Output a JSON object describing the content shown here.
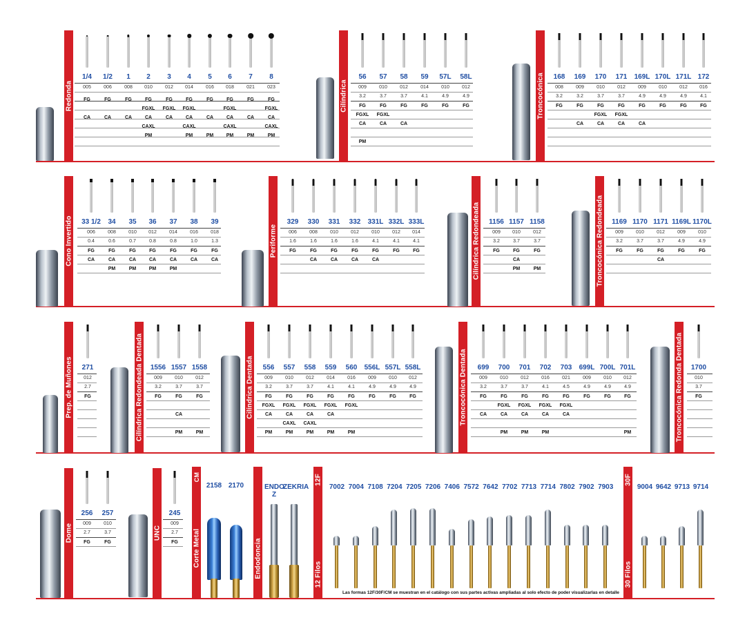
{
  "sections": [
    {
      "id": "redonda",
      "label": "Redonda",
      "columns": [
        {
          "n": "1/4",
          "a": "005",
          "b": "",
          "r": [
            "FG",
            "",
            "CA",
            "",
            ""
          ]
        },
        {
          "n": "1/2",
          "a": "006",
          "b": "",
          "r": [
            "FG",
            "",
            "CA",
            "",
            ""
          ]
        },
        {
          "n": "1",
          "a": "008",
          "b": "",
          "r": [
            "FG",
            "",
            "CA",
            "",
            ""
          ]
        },
        {
          "n": "2",
          "a": "010",
          "b": "",
          "r": [
            "FG",
            "FGXL",
            "CA",
            "CAXL",
            "PM"
          ]
        },
        {
          "n": "3",
          "a": "012",
          "b": "",
          "r": [
            "FG",
            "FGXL",
            "CA",
            "",
            ""
          ]
        },
        {
          "n": "4",
          "a": "014",
          "b": "",
          "r": [
            "FG",
            "FGXL",
            "CA",
            "CAXL",
            "PM"
          ]
        },
        {
          "n": "5",
          "a": "016",
          "b": "",
          "r": [
            "FG",
            "",
            "CA",
            "",
            "PM"
          ]
        },
        {
          "n": "6",
          "a": "018",
          "b": "",
          "r": [
            "FG",
            "FGXL",
            "CA",
            "CAXL",
            "PM"
          ]
        },
        {
          "n": "7",
          "a": "021",
          "b": "",
          "r": [
            "FG",
            "",
            "CA",
            "",
            "PM"
          ]
        },
        {
          "n": "8",
          "a": "023",
          "b": "",
          "r": [
            "FG",
            "FGXL",
            "CA",
            "CAXL",
            "PM"
          ]
        }
      ]
    },
    {
      "id": "cilindrica",
      "label": "Cilíndrica",
      "columns": [
        {
          "n": "56",
          "a": "009",
          "b": "3.2",
          "r": [
            "FG",
            "FGXL",
            "CA",
            "",
            "PM"
          ]
        },
        {
          "n": "57",
          "a": "010",
          "b": "3.7",
          "r": [
            "FG",
            "FGXL",
            "CA",
            "",
            ""
          ]
        },
        {
          "n": "58",
          "a": "012",
          "b": "3.7",
          "r": [
            "FG",
            "",
            "CA",
            "",
            ""
          ]
        },
        {
          "n": "59",
          "a": "014",
          "b": "4.1",
          "r": [
            "FG",
            "",
            "",
            "",
            ""
          ]
        },
        {
          "n": "57L",
          "a": "010",
          "b": "4.9",
          "r": [
            "FG",
            "",
            "",
            "",
            ""
          ]
        },
        {
          "n": "58L",
          "a": "012",
          "b": "4.9",
          "r": [
            "FG",
            "",
            "",
            "",
            ""
          ]
        }
      ]
    },
    {
      "id": "troncoconica",
      "label": "Troncocónica",
      "columns": [
        {
          "n": "168",
          "a": "008",
          "b": "3.2",
          "r": [
            "FG",
            "",
            "",
            "",
            ""
          ]
        },
        {
          "n": "169",
          "a": "009",
          "b": "3.2",
          "r": [
            "FG",
            "",
            "CA",
            "",
            ""
          ]
        },
        {
          "n": "170",
          "a": "010",
          "b": "3.7",
          "r": [
            "FG",
            "FGXL",
            "CA",
            "",
            ""
          ]
        },
        {
          "n": "171",
          "a": "012",
          "b": "3.7",
          "r": [
            "FG",
            "FGXL",
            "CA",
            "",
            ""
          ]
        },
        {
          "n": "169L",
          "a": "009",
          "b": "4.9",
          "r": [
            "FG",
            "",
            "CA",
            "",
            ""
          ]
        },
        {
          "n": "170L",
          "a": "010",
          "b": "4.9",
          "r": [
            "FG",
            "",
            "",
            "",
            ""
          ]
        },
        {
          "n": "171L",
          "a": "012",
          "b": "4.9",
          "r": [
            "FG",
            "",
            "",
            "",
            ""
          ]
        },
        {
          "n": "172",
          "a": "016",
          "b": "4.1",
          "r": [
            "FG",
            "",
            "",
            "",
            ""
          ]
        }
      ]
    },
    {
      "id": "cono",
      "label": "Cono Invertido",
      "columns": [
        {
          "n": "33 1/2",
          "a": "006",
          "b": "0.4",
          "r": [
            "FG",
            "CA",
            ""
          ]
        },
        {
          "n": "34",
          "a": "008",
          "b": "0.6",
          "r": [
            "FG",
            "CA",
            "PM"
          ]
        },
        {
          "n": "35",
          "a": "010",
          "b": "0.7",
          "r": [
            "FG",
            "CA",
            "PM"
          ]
        },
        {
          "n": "36",
          "a": "012",
          "b": "0.8",
          "r": [
            "FG",
            "CA",
            "PM"
          ]
        },
        {
          "n": "37",
          "a": "014",
          "b": "0.8",
          "r": [
            "FG",
            "CA",
            "PM"
          ]
        },
        {
          "n": "38",
          "a": "016",
          "b": "1.0",
          "r": [
            "FG",
            "CA",
            ""
          ]
        },
        {
          "n": "39",
          "a": "018",
          "b": "1.3",
          "r": [
            "FG",
            "CA",
            ""
          ]
        }
      ]
    },
    {
      "id": "periforme",
      "label": "Periforme",
      "columns": [
        {
          "n": "329",
          "a": "006",
          "b": "1.6",
          "r": [
            "FG",
            "",
            ""
          ]
        },
        {
          "n": "330",
          "a": "008",
          "b": "1.6",
          "r": [
            "FG",
            "CA",
            ""
          ]
        },
        {
          "n": "331",
          "a": "010",
          "b": "1.6",
          "r": [
            "FG",
            "CA",
            ""
          ]
        },
        {
          "n": "332",
          "a": "012",
          "b": "1.6",
          "r": [
            "FG",
            "CA",
            ""
          ]
        },
        {
          "n": "331L",
          "a": "010",
          "b": "4.1",
          "r": [
            "FG",
            "CA",
            ""
          ]
        },
        {
          "n": "332L",
          "a": "012",
          "b": "4.1",
          "r": [
            "FG",
            "",
            ""
          ]
        },
        {
          "n": "333L",
          "a": "014",
          "b": "4.1",
          "r": [
            "FG",
            "",
            ""
          ]
        }
      ]
    },
    {
      "id": "cilred",
      "label": "Cilíndrica Redondeada",
      "columns": [
        {
          "n": "1156",
          "a": "009",
          "b": "3.2",
          "r": [
            "FG",
            "",
            ""
          ]
        },
        {
          "n": "1157",
          "a": "010",
          "b": "3.7",
          "r": [
            "FG",
            "CA",
            "PM"
          ]
        },
        {
          "n": "1158",
          "a": "012",
          "b": "3.7",
          "r": [
            "FG",
            "",
            "PM"
          ]
        }
      ]
    },
    {
      "id": "tronred",
      "label": "Troncocónica Redondeada",
      "columns": [
        {
          "n": "1169",
          "a": "009",
          "b": "3.2",
          "r": [
            "FG",
            "",
            ""
          ]
        },
        {
          "n": "1170",
          "a": "010",
          "b": "3.7",
          "r": [
            "FG",
            "",
            ""
          ]
        },
        {
          "n": "1171",
          "a": "012",
          "b": "3.7",
          "r": [
            "FG",
            "CA",
            ""
          ]
        },
        {
          "n": "1169L",
          "a": "009",
          "b": "4.9",
          "r": [
            "FG",
            "",
            ""
          ]
        },
        {
          "n": "1170L",
          "a": "010",
          "b": "4.9",
          "r": [
            "FG",
            "",
            ""
          ]
        }
      ]
    },
    {
      "id": "prep",
      "label": "Prep. de Muñones",
      "columns": [
        {
          "n": "271",
          "a": "012",
          "b": "2.7",
          "r": [
            "FG",
            "",
            "",
            "",
            ""
          ]
        }
      ]
    },
    {
      "id": "cilreddent",
      "label": "Cilíndrica Redondeada Dentada",
      "columns": [
        {
          "n": "1556",
          "a": "009",
          "b": "3.2",
          "r": [
            "FG",
            "",
            "",
            "",
            ""
          ]
        },
        {
          "n": "1557",
          "a": "010",
          "b": "3.7",
          "r": [
            "FG",
            "",
            "CA",
            "",
            "PM"
          ]
        },
        {
          "n": "1558",
          "a": "012",
          "b": "3.7",
          "r": [
            "FG",
            "",
            "",
            "",
            "PM"
          ]
        }
      ]
    },
    {
      "id": "cildent",
      "label": "Cilíndrica Dentada",
      "columns": [
        {
          "n": "556",
          "a": "009",
          "b": "3.2",
          "r": [
            "FG",
            "FGXL",
            "CA",
            "",
            "PM"
          ]
        },
        {
          "n": "557",
          "a": "010",
          "b": "3.7",
          "r": [
            "FG",
            "FGXL",
            "CA",
            "CAXL",
            "PM"
          ]
        },
        {
          "n": "558",
          "a": "012",
          "b": "3.7",
          "r": [
            "FG",
            "FGXL",
            "CA",
            "CAXL",
            "PM"
          ]
        },
        {
          "n": "559",
          "a": "014",
          "b": "4.1",
          "r": [
            "FG",
            "FGXL",
            "CA",
            "",
            "PM"
          ]
        },
        {
          "n": "560",
          "a": "016",
          "b": "4.1",
          "r": [
            "FG",
            "FGXL",
            "",
            "",
            "PM"
          ]
        },
        {
          "n": "556L",
          "a": "009",
          "b": "4.9",
          "r": [
            "FG",
            "",
            "",
            "",
            ""
          ]
        },
        {
          "n": "557L",
          "a": "010",
          "b": "4.9",
          "r": [
            "FG",
            "",
            "",
            "",
            ""
          ]
        },
        {
          "n": "558L",
          "a": "012",
          "b": "4.9",
          "r": [
            "FG",
            "",
            "",
            "",
            ""
          ]
        }
      ]
    },
    {
      "id": "trondent",
      "label": "Troncocónica Dentada",
      "columns": [
        {
          "n": "699",
          "a": "009",
          "b": "3.2",
          "r": [
            "FG",
            "",
            "CA",
            "",
            ""
          ]
        },
        {
          "n": "700",
          "a": "010",
          "b": "3.7",
          "r": [
            "FG",
            "FGXL",
            "CA",
            "",
            "PM"
          ]
        },
        {
          "n": "701",
          "a": "012",
          "b": "3.7",
          "r": [
            "FG",
            "FGXL",
            "CA",
            "",
            "PM"
          ]
        },
        {
          "n": "702",
          "a": "016",
          "b": "4.1",
          "r": [
            "FG",
            "FGXL",
            "CA",
            "",
            "PM"
          ]
        },
        {
          "n": "703",
          "a": "021",
          "b": "4.5",
          "r": [
            "FG",
            "FGXL",
            "CA",
            "",
            ""
          ]
        },
        {
          "n": "699L",
          "a": "009",
          "b": "4.9",
          "r": [
            "FG",
            "",
            "",
            "",
            ""
          ]
        },
        {
          "n": "700L",
          "a": "010",
          "b": "4.9",
          "r": [
            "FG",
            "",
            "",
            "",
            ""
          ]
        },
        {
          "n": "701L",
          "a": "012",
          "b": "4.9",
          "r": [
            "FG",
            "",
            "",
            "",
            "PM"
          ]
        }
      ]
    },
    {
      "id": "tronreddent",
      "label": "Troncocónica Redonda Dentada",
      "columns": [
        {
          "n": "1700",
          "a": "010",
          "b": "3.7",
          "r": [
            "FG",
            "",
            "",
            "",
            ""
          ]
        }
      ]
    },
    {
      "id": "dome",
      "label": "Dome",
      "columns": [
        {
          "n": "256",
          "a": "009",
          "b": "2.7",
          "r": [
            "FG"
          ]
        },
        {
          "n": "257",
          "a": "010",
          "b": "3.7",
          "r": [
            "FG"
          ]
        }
      ]
    },
    {
      "id": "unc",
      "label": "UNC",
      "columns": [
        {
          "n": "245",
          "a": "009",
          "b": "2.7",
          "r": [
            "FG"
          ]
        }
      ]
    }
  ],
  "corte_metal": {
    "label": "Corte Metal",
    "cm": "CM",
    "items": [
      "2158",
      "2170"
    ]
  },
  "endodoncia": {
    "label": "Endodoncia",
    "items": [
      "ENDO Z",
      "ZEKRIA"
    ]
  },
  "filos12": {
    "label": "12 Filos",
    "tag": "12F",
    "items": [
      "7002",
      "7004",
      "7108",
      "7204",
      "7205",
      "7206",
      "7406",
      "7572",
      "7642",
      "7702",
      "7713",
      "7714",
      "7802",
      "7902",
      "7903"
    ]
  },
  "filos30": {
    "label": "30 Filos",
    "tag": "30F",
    "items": [
      "9004",
      "9642",
      "9713",
      "9714"
    ]
  },
  "footnote": "Las formas 12F/30F/CM se muestran en el catálogo con sus partes activas ampliadas al solo efecto de poder visualizarlas en detalle",
  "colors": {
    "red": "#d41f26",
    "blue": "#1f4ea3"
  }
}
